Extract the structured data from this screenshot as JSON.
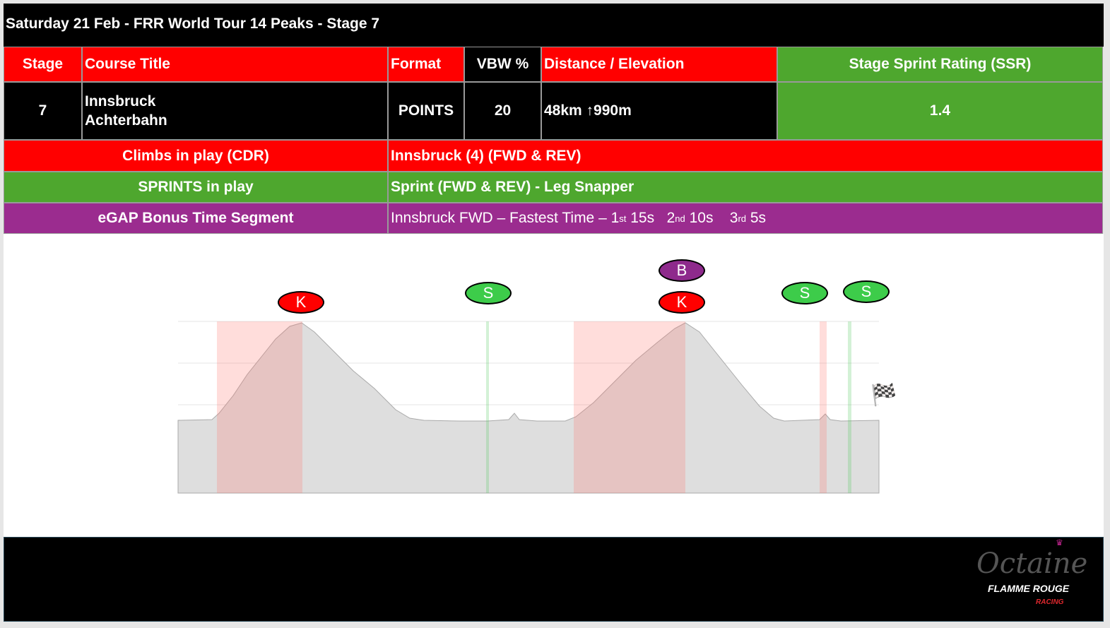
{
  "title": "Saturday 21 Feb - FRR World Tour 14 Peaks - Stage 7",
  "headers": {
    "stage": "Stage",
    "course": "Course Title",
    "format": "Format",
    "vbw": "VBW %",
    "dist": "Distance / Elevation",
    "ssr": "Stage Sprint Rating (SSR)"
  },
  "row": {
    "stage": "7",
    "course_line1": "Innsbruck",
    "course_line2": "Achterbahn",
    "format": "POINTS",
    "vbw": "20",
    "dist": "48km ↑990m",
    "ssr": "1.4"
  },
  "climbs": {
    "label": "Climbs in play (CDR)",
    "value": "Innsbruck (4) (FWD & REV)"
  },
  "sprints": {
    "label": "SPRINTS in play",
    "value": "Sprint (FWD & REV) - Leg Snapper"
  },
  "egap": {
    "label": "eGAP Bonus Time Segment",
    "prefix": "Innsbruck FWD – Fastest Time – 1",
    "s1": "st",
    "v1": " 15s   2",
    "s2": "nd",
    "v2": " 10s    3",
    "s3": "rd",
    "v3": " 5s"
  },
  "markers": {
    "k": "K",
    "s": "S",
    "b": "B"
  },
  "colors": {
    "red": "#ff0000",
    "green": "#4ea72e",
    "purple": "#9b2c8f",
    "kom_marker": "#ff0000",
    "sprint_marker": "#3dcc4a",
    "bonus_marker": "#8e2a8c"
  },
  "logo": {
    "brand": "Octaine",
    "sub": "FLAMME ROUGE",
    "sub2": "RACING"
  },
  "finish_icon": "checkered-flag-icon"
}
